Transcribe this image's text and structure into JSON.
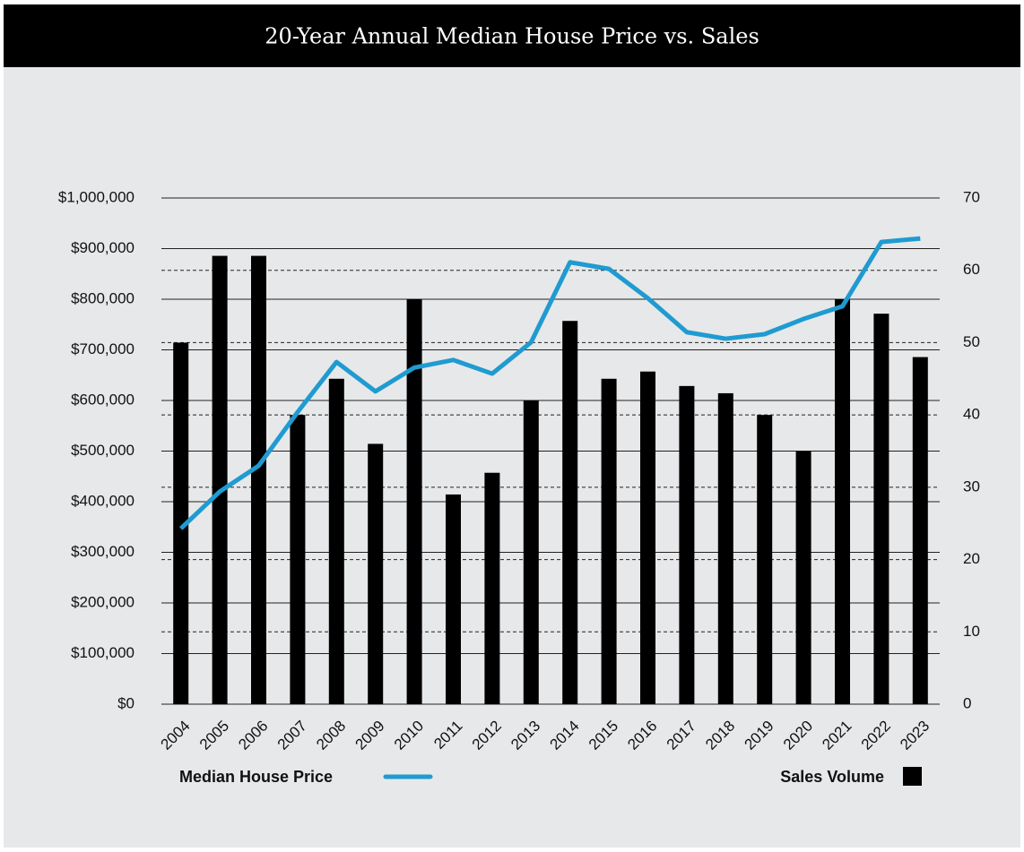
{
  "chart_data": {
    "type": "combo",
    "title": "20-Year Annual Median House Price vs. Sales",
    "categories": [
      "2004",
      "2005",
      "2006",
      "2007",
      "2008",
      "2009",
      "2010",
      "2011",
      "2012",
      "2013",
      "2014",
      "2015",
      "2016",
      "2017",
      "2018",
      "2019",
      "2020",
      "2021",
      "2022",
      "2023"
    ],
    "series": [
      {
        "name": "Median House Price",
        "type": "line",
        "color": "#1f9bd1",
        "axis": "y",
        "values": [
          347000,
          420000,
          471000,
          577000,
          676000,
          618000,
          665000,
          680000,
          653000,
          715000,
          873000,
          860000,
          802000,
          735000,
          722000,
          731000,
          761000,
          786000,
          913000,
          920000
        ]
      },
      {
        "name": "Sales Volume",
        "type": "bar",
        "color": "#000000",
        "axis": "y2",
        "values": [
          50,
          62,
          62,
          40,
          45,
          36,
          56,
          29,
          32,
          42,
          53,
          45,
          46,
          44,
          43,
          40,
          35,
          56,
          54,
          48
        ]
      }
    ],
    "ylim": [
      0,
      1000000
    ],
    "yticks": [
      {
        "value": 0,
        "label": "$0"
      },
      {
        "value": 100000,
        "label": "$100,000"
      },
      {
        "value": 200000,
        "label": "$200,000"
      },
      {
        "value": 300000,
        "label": "$300,000"
      },
      {
        "value": 400000,
        "label": "$400,000"
      },
      {
        "value": 500000,
        "label": "$500,000"
      },
      {
        "value": 600000,
        "label": "$600,000"
      },
      {
        "value": 700000,
        "label": "$700,000"
      },
      {
        "value": 800000,
        "label": "$800,000"
      },
      {
        "value": 900000,
        "label": "$900,000"
      },
      {
        "value": 1000000,
        "label": "$1,000,000"
      }
    ],
    "y2lim": [
      0,
      70
    ],
    "y2ticks": [
      0,
      10,
      20,
      30,
      40,
      50,
      60,
      70
    ],
    "grid": true
  }
}
